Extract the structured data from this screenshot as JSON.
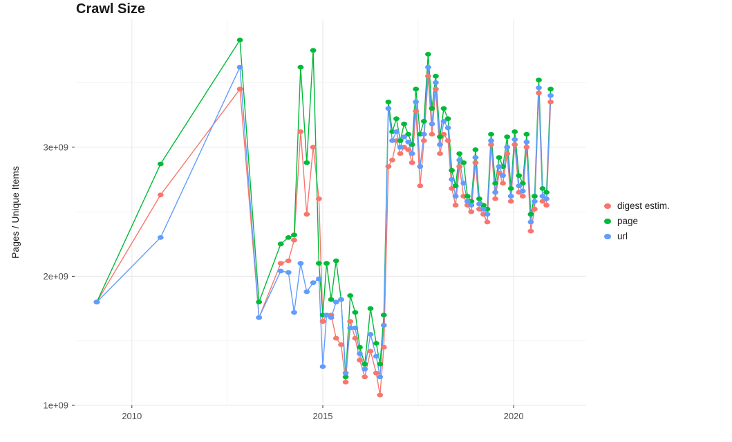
{
  "chart_data": {
    "type": "line",
    "title": "Crawl Size",
    "xlabel": "",
    "ylabel": "Pages / Unique Items",
    "legend_position": "right",
    "grid": true,
    "background": "#FFFFFF",
    "grid_major_color": "#EBEBEB",
    "grid_minor_color": "#F5F5F5",
    "xlim": [
      2008.5,
      2021.9
    ],
    "ylim": [
      1000000000.0,
      3990000000.0
    ],
    "x_ticks": [
      {
        "value": 2010,
        "label": "2010"
      },
      {
        "value": 2015,
        "label": "2015"
      },
      {
        "value": 2020,
        "label": "2020"
      }
    ],
    "y_ticks": [
      {
        "value": 1000000000.0,
        "label": "1e+09"
      },
      {
        "value": 2000000000.0,
        "label": "2e+09"
      },
      {
        "value": 3000000000.0,
        "label": "3e+09"
      }
    ],
    "x_minor": [
      2012.5,
      2017.5
    ],
    "y_minor": [
      1500000000.0,
      2500000000.0,
      3500000000.0
    ],
    "x": [
      2009.08,
      2010.75,
      2012.83,
      2013.33,
      2013.9,
      2014.1,
      2014.25,
      2014.42,
      2014.58,
      2014.75,
      2014.9,
      2015.0,
      2015.1,
      2015.22,
      2015.35,
      2015.48,
      2015.6,
      2015.72,
      2015.85,
      2015.97,
      2016.1,
      2016.25,
      2016.4,
      2016.5,
      2016.6,
      2016.72,
      2016.82,
      2016.93,
      2017.03,
      2017.13,
      2017.24,
      2017.34,
      2017.44,
      2017.55,
      2017.65,
      2017.76,
      2017.86,
      2017.96,
      2018.07,
      2018.17,
      2018.28,
      2018.38,
      2018.48,
      2018.58,
      2018.69,
      2018.79,
      2018.89,
      2019.0,
      2019.1,
      2019.21,
      2019.31,
      2019.41,
      2019.52,
      2019.62,
      2019.72,
      2019.83,
      2019.93,
      2020.03,
      2020.14,
      2020.24,
      2020.34,
      2020.45,
      2020.55,
      2020.66,
      2020.76,
      2020.86,
      2020.97
    ],
    "series": [
      {
        "name": "digest estim.",
        "color": "#F8766D",
        "values": [
          1800000000.0,
          2630000000.0,
          3450000000.0,
          1680000000.0,
          2100000000.0,
          2120000000.0,
          2280000000.0,
          3120000000.0,
          2480000000.0,
          3000000000.0,
          2600000000.0,
          1650000000.0,
          1700000000.0,
          1700000000.0,
          1520000000.0,
          1470000000.0,
          1180000000.0,
          1650000000.0,
          1520000000.0,
          1350000000.0,
          1220000000.0,
          1420000000.0,
          1250000000.0,
          1080000000.0,
          1450000000.0,
          2850000000.0,
          2900000000.0,
          3050000000.0,
          2950000000.0,
          3000000000.0,
          2980000000.0,
          2880000000.0,
          3280000000.0,
          2700000000.0,
          3050000000.0,
          3550000000.0,
          3100000000.0,
          3450000000.0,
          2950000000.0,
          3100000000.0,
          3050000000.0,
          2680000000.0,
          2550000000.0,
          2850000000.0,
          2620000000.0,
          2550000000.0,
          2500000000.0,
          2880000000.0,
          2520000000.0,
          2480000000.0,
          2420000000.0,
          3020000000.0,
          2600000000.0,
          2800000000.0,
          2720000000.0,
          2950000000.0,
          2580000000.0,
          3020000000.0,
          2650000000.0,
          2620000000.0,
          3000000000.0,
          2350000000.0,
          2520000000.0,
          3420000000.0,
          2580000000.0,
          2550000000.0,
          3350000000.0
        ]
      },
      {
        "name": "page",
        "color": "#00BA38",
        "values": [
          1800000000.0,
          2870000000.0,
          3830000000.0,
          1800000000.0,
          2250000000.0,
          2300000000.0,
          2320000000.0,
          3620000000.0,
          2880000000.0,
          3750000000.0,
          2100000000.0,
          1700000000.0,
          2100000000.0,
          1820000000.0,
          2120000000.0,
          1820000000.0,
          1220000000.0,
          1850000000.0,
          1720000000.0,
          1450000000.0,
          1320000000.0,
          1750000000.0,
          1480000000.0,
          1320000000.0,
          1700000000.0,
          3350000000.0,
          3120000000.0,
          3220000000.0,
          3050000000.0,
          3180000000.0,
          3100000000.0,
          3020000000.0,
          3450000000.0,
          3100000000.0,
          3200000000.0,
          3720000000.0,
          3300000000.0,
          3550000000.0,
          3080000000.0,
          3300000000.0,
          3220000000.0,
          2820000000.0,
          2700000000.0,
          2950000000.0,
          2880000000.0,
          2620000000.0,
          2580000000.0,
          2980000000.0,
          2600000000.0,
          2550000000.0,
          2520000000.0,
          3100000000.0,
          2720000000.0,
          2920000000.0,
          2850000000.0,
          3080000000.0,
          2680000000.0,
          3120000000.0,
          2780000000.0,
          2720000000.0,
          3100000000.0,
          2480000000.0,
          2620000000.0,
          3520000000.0,
          2680000000.0,
          2650000000.0,
          3450000000.0
        ]
      },
      {
        "name": "url",
        "color": "#619CFF",
        "values": [
          1800000000.0,
          2300000000.0,
          3620000000.0,
          1680000000.0,
          2040000000.0,
          2030000000.0,
          1720000000.0,
          2100000000.0,
          1880000000.0,
          1950000000.0,
          1980000000.0,
          1300000000.0,
          1700000000.0,
          1680000000.0,
          1800000000.0,
          1820000000.0,
          1250000000.0,
          1600000000.0,
          1600000000.0,
          1400000000.0,
          1280000000.0,
          1550000000.0,
          1380000000.0,
          1220000000.0,
          1620000000.0,
          3300000000.0,
          3050000000.0,
          3120000000.0,
          3000000000.0,
          3080000000.0,
          3040000000.0,
          2950000000.0,
          3350000000.0,
          2850000000.0,
          3100000000.0,
          3620000000.0,
          3180000000.0,
          3500000000.0,
          3020000000.0,
          3200000000.0,
          3150000000.0,
          2750000000.0,
          2620000000.0,
          2900000000.0,
          2720000000.0,
          2580000000.0,
          2550000000.0,
          2920000000.0,
          2560000000.0,
          2520000000.0,
          2480000000.0,
          3050000000.0,
          2650000000.0,
          2850000000.0,
          2780000000.0,
          3000000000.0,
          2620000000.0,
          3060000000.0,
          2700000000.0,
          2660000000.0,
          3040000000.0,
          2420000000.0,
          2580000000.0,
          3460000000.0,
          2620000000.0,
          2600000000.0,
          3400000000.0
        ]
      }
    ]
  }
}
